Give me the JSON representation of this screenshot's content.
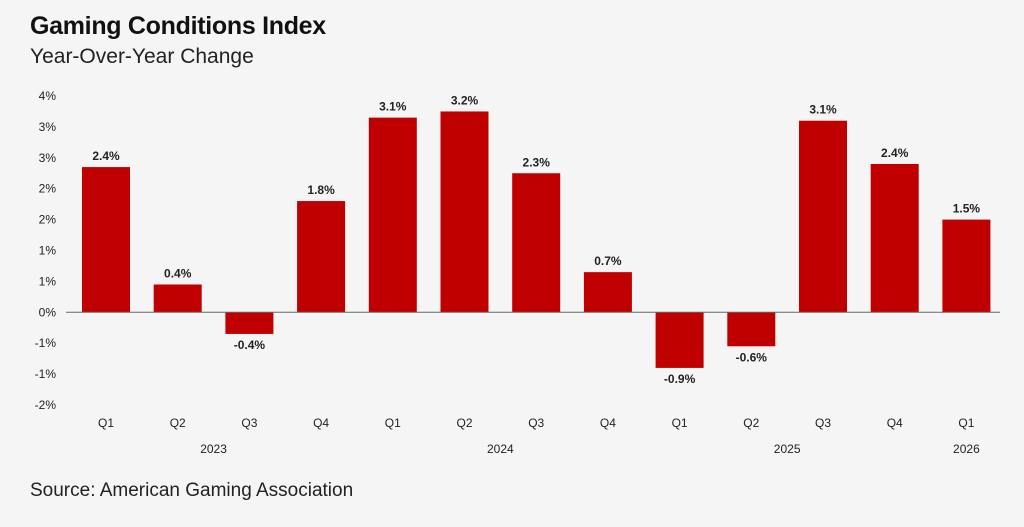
{
  "title": "Gaming Conditions Index",
  "subtitle": "Year-Over-Year Change",
  "source": "Source: American Gaming Association",
  "colors": {
    "bar": "#c00000",
    "zero_line": "#666666"
  },
  "chart_data": {
    "type": "bar",
    "title": "Gaming Conditions Index",
    "subtitle": "Year-Over-Year Change",
    "categories": [
      "Q1",
      "Q2",
      "Q3",
      "Q4",
      "Q1",
      "Q2",
      "Q3",
      "Q4",
      "Q1",
      "Q2",
      "Q3",
      "Q4",
      "Q1"
    ],
    "groups": [
      {
        "label": "2023",
        "start": 0,
        "end": 3
      },
      {
        "label": "2024",
        "start": 4,
        "end": 7
      },
      {
        "label": "2025",
        "start": 8,
        "end": 11
      },
      {
        "label": "2026",
        "start": 12,
        "end": 12
      }
    ],
    "values": [
      2.35,
      0.45,
      -0.35,
      1.8,
      3.15,
      3.25,
      2.25,
      0.65,
      -0.9,
      -0.55,
      3.1,
      2.4,
      1.5
    ],
    "data_labels": [
      "2.4%",
      "0.4%",
      "-0.4%",
      "1.8%",
      "3.1%",
      "3.2%",
      "2.3%",
      "0.7%",
      "-0.9%",
      "-0.6%",
      "3.1%",
      "2.4%",
      "1.5%"
    ],
    "y_ticks": [
      "4%",
      "3%",
      "3%",
      "2%",
      "2%",
      "1%",
      "1%",
      "0%",
      "-1%",
      "-1%",
      "-2%"
    ],
    "ylim": [
      -1.5,
      3.5
    ],
    "grid": false,
    "legend": "none",
    "xlabel": "",
    "ylabel": ""
  }
}
